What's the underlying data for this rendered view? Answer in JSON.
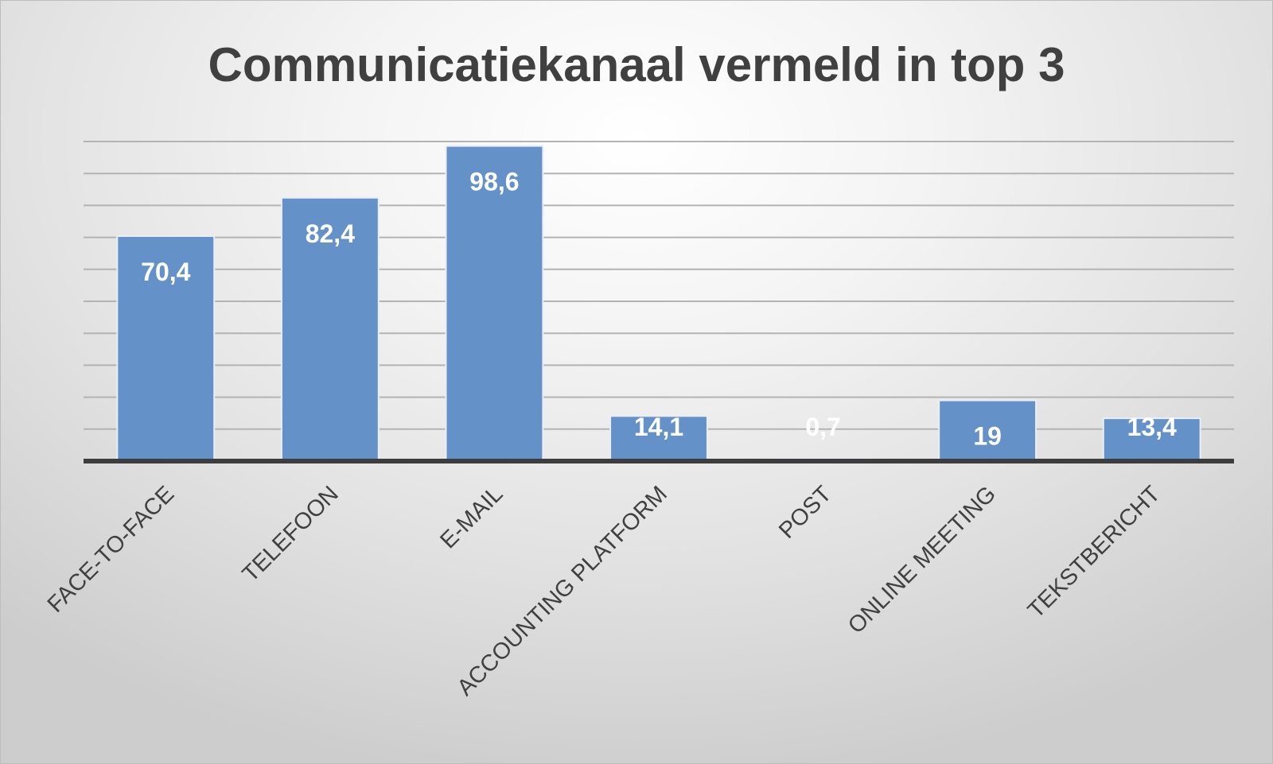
{
  "chart_data": {
    "type": "bar",
    "title": "Communicatiekanaal vermeld in top 3",
    "categories": [
      "FACE-TO-FACE",
      "TELEFOON",
      "E-MAIL",
      "ACCOUNTING PLATFORM",
      "POST",
      "ONLINE MEETING",
      "TEKSTBERICHT"
    ],
    "values": [
      70.4,
      82.4,
      98.6,
      14.1,
      0.7,
      19,
      13.4
    ],
    "value_labels": [
      "70,4",
      "82,4",
      "98,6",
      "14,1",
      "0,7",
      "19",
      "13,4"
    ],
    "ylim": [
      0,
      100
    ],
    "grid": true,
    "legend": "none",
    "bar_color": "#6591c9"
  }
}
